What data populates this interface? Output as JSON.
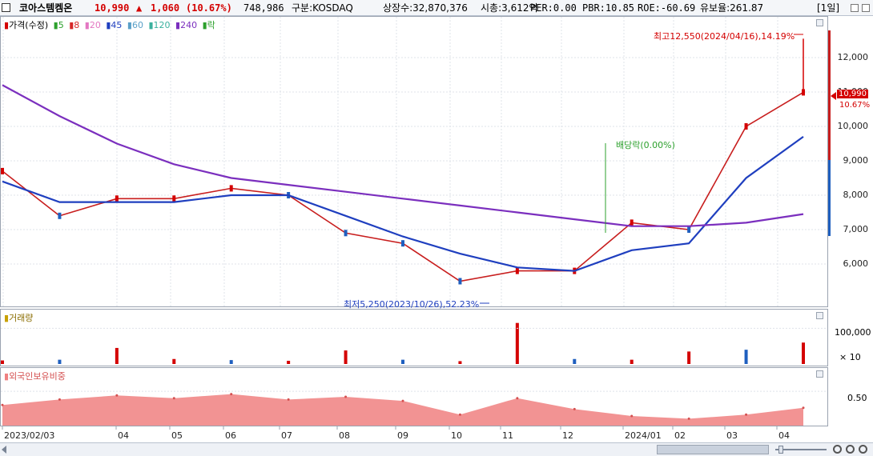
{
  "header": {
    "name": "코아스템켐온",
    "price": "10,990",
    "change_arrow": "▲",
    "change": "1,060",
    "change_pct": "(10.67%)",
    "volume": "748,986",
    "market": "구분:KOSDAQ",
    "shares": "상장수:32,870,376",
    "mcap": "시총:3,612억",
    "per": "PER:0.00",
    "pbr": "PBR:10.85",
    "roe": "ROE:-60.69",
    "float": "유보율:261.87",
    "period": "[1일]"
  },
  "legend": {
    "price_label": "가격(수정)",
    "ma": [
      {
        "label": "5",
        "color": "#2ca02c"
      },
      {
        "label": "8",
        "color": "#d62728"
      },
      {
        "label": "20",
        "color": "#e377c2"
      },
      {
        "label": "45",
        "color": "#1f3fbf"
      },
      {
        "label": "60",
        "color": "#5aa0c8"
      },
      {
        "label": "120",
        "color": "#3ab09e"
      },
      {
        "label": "240",
        "color": "#7b2fbe"
      }
    ],
    "drop_label": "락"
  },
  "annotations": {
    "high": "최고12,550(2024/04/16),14.19%",
    "low": "최저5,250(2023/10/26),52.23%",
    "dividend": "배당락(0.00%)",
    "current_price": "10,990",
    "current_pct": "10.67%"
  },
  "volume_panel": {
    "title": "거래량",
    "ticks": [
      "100,000",
      "× 10"
    ]
  },
  "foreign_panel": {
    "title": "외국인보유비중",
    "ticks": [
      "0.50"
    ]
  },
  "x_axis": [
    "2023/02/03",
    "04",
    "05",
    "06",
    "07",
    "08",
    "09",
    "10",
    "11",
    "12",
    "2024/01",
    "02",
    "03",
    "04"
  ],
  "colors": {
    "up": "#d40000",
    "down": "#1f5fbf",
    "foreign": "#f08080"
  },
  "chart_data": {
    "type": "line",
    "title": "",
    "ylim": [
      5000,
      13000
    ],
    "y_ticks": [
      6000,
      7000,
      8000,
      9000,
      10000,
      11000,
      12000
    ],
    "x": [
      "2023-02",
      "2023-03",
      "2023-04",
      "2023-05",
      "2023-06",
      "2023-07",
      "2023-08",
      "2023-09",
      "2023-10",
      "2023-11",
      "2023-12",
      "2024-01",
      "2024-02",
      "2024-03",
      "2024-04"
    ],
    "series": [
      {
        "name": "가격(수정)",
        "values": [
          8700,
          7400,
          7900,
          7900,
          8200,
          8000,
          6900,
          6600,
          5500,
          5800,
          5800,
          7200,
          7000,
          10000,
          10990
        ]
      },
      {
        "name": "45",
        "values": [
          8400,
          7800,
          7800,
          7800,
          8000,
          8000,
          7400,
          6800,
          6300,
          5900,
          5800,
          6400,
          6600,
          8500,
          9700
        ]
      },
      {
        "name": "240",
        "values": [
          11200,
          10300,
          9500,
          8900,
          8500,
          8300,
          8100,
          7900,
          7700,
          7500,
          7300,
          7100,
          7100,
          7200,
          7450
        ]
      }
    ],
    "volume_ylim": [
      0,
      130000
    ],
    "volume": [
      10000,
      12000,
      45000,
      14000,
      11000,
      9000,
      38000,
      12000,
      8000,
      115000,
      14000,
      12000,
      35000,
      40000,
      60000
    ],
    "foreign_ylim": [
      0.25,
      0.6
    ],
    "foreign_ratio": [
      0.4,
      0.44,
      0.47,
      0.45,
      0.48,
      0.44,
      0.46,
      0.43,
      0.33,
      0.45,
      0.37,
      0.32,
      0.3,
      0.33,
      0.38
    ]
  }
}
